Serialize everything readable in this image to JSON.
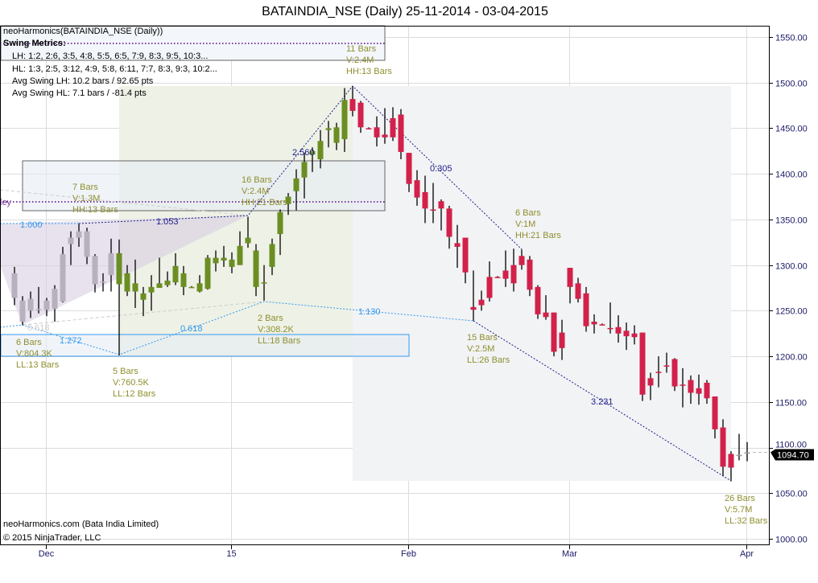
{
  "chart_data": {
    "type": "candlestick",
    "title": "BATAINDIA_NSE (Daily)  25-11-2014 - 03-04-2015",
    "indicator_label": "neoHarmonics(BATAINDIA_NSE (Daily))",
    "swing_metrics": {
      "heading": "Swing Metrics:",
      "lh": "LH: 1:2, 2:6, 3:5, 4:8, 5:5, 6:5, 7:9, 8:3, 9:5, 10:3...",
      "hl": "HL: 1:3, 2:5, 3:12, 4:9, 5:8, 6:11, 7:7, 8:3, 9:3, 10:2...",
      "avg_lh": "Avg Swing LH: 10.2 bars / 92.65 pts",
      "avg_hl": "Avg Swing HL: 7.1 bars / -81.4 pts"
    },
    "pattern_label_partial": "ley",
    "ylim": [
      1000,
      1550
    ],
    "y_ticks": [
      "1000.00",
      "1050.00",
      "1100.00",
      "1150.00",
      "1200.00",
      "1250.00",
      "1300.00",
      "1350.00",
      "1400.00",
      "1450.00",
      "1500.00",
      "1550.00"
    ],
    "y_tick_values": [
      1000,
      1050,
      1100,
      1150,
      1200,
      1250,
      1300,
      1350,
      1400,
      1450,
      1500,
      1550
    ],
    "x_ticks": [
      {
        "label": "Dec",
        "bar": 4
      },
      {
        "label": "15",
        "bar": 27
      },
      {
        "label": "Feb",
        "bar": 49
      },
      {
        "label": "Mar",
        "bar": 69
      },
      {
        "label": "Apr",
        "bar": 91
      }
    ],
    "last_price": "1094.70",
    "last_price_value": 1094.7,
    "colors": {
      "gray": "#b8b0bd",
      "up_pattern": "#6b8e23",
      "down_pattern": "#d2214a",
      "plain": "#9a9a9a",
      "label": "#8f8f2f",
      "ratio_dark": "#1c1c8a",
      "ratio_light": "#3399ee"
    },
    "color_segments": [
      {
        "from": 0,
        "to": 12,
        "color": "#b8b0bd"
      },
      {
        "from": 13,
        "to": 41,
        "color": "#6b8e23"
      },
      {
        "from": 42,
        "to": 89,
        "color": "#d2214a"
      },
      {
        "from": 90,
        "to": 91,
        "color": "#9a9a9a"
      }
    ],
    "ohlc": [
      [
        1291,
        1298,
        1256,
        1264
      ],
      [
        1261,
        1266,
        1234,
        1238
      ],
      [
        1250,
        1271,
        1242,
        1263
      ],
      [
        1252,
        1276,
        1247,
        1252
      ],
      [
        1251,
        1264,
        1244,
        1261
      ],
      [
        1252,
        1278,
        1238,
        1274
      ],
      [
        1260,
        1320,
        1259,
        1312
      ],
      [
        1323,
        1337,
        1300,
        1330
      ],
      [
        1330,
        1345,
        1320,
        1337
      ],
      [
        1337,
        1341,
        1301,
        1309
      ],
      [
        1310,
        1312,
        1270,
        1279
      ],
      [
        1282,
        1291,
        1271,
        1282
      ],
      [
        1289,
        1329,
        1271,
        1313
      ],
      [
        1279,
        1328,
        1201,
        1313
      ],
      [
        1291,
        1300,
        1266,
        1271
      ],
      [
        1280,
        1306,
        1253,
        1271
      ],
      [
        1269,
        1276,
        1244,
        1262
      ],
      [
        1270,
        1289,
        1250,
        1276
      ],
      [
        1275,
        1308,
        1275,
        1280
      ],
      [
        1278,
        1293,
        1276,
        1283
      ],
      [
        1281,
        1313,
        1278,
        1299
      ],
      [
        1291,
        1299,
        1267,
        1276
      ],
      [
        1276,
        1277,
        1275,
        1276
      ],
      [
        1271,
        1289,
        1270,
        1280
      ],
      [
        1274,
        1311,
        1273,
        1308
      ],
      [
        1302,
        1316,
        1293,
        1308
      ],
      [
        1305,
        1321,
        1298,
        1308
      ],
      [
        1306,
        1314,
        1291,
        1298
      ],
      [
        1300,
        1337,
        1300,
        1321
      ],
      [
        1324,
        1353,
        1319,
        1330
      ],
      [
        1316,
        1323,
        1266,
        1276
      ],
      [
        1281,
        1300,
        1261,
        1281
      ],
      [
        1298,
        1329,
        1289,
        1323
      ],
      [
        1334,
        1361,
        1311,
        1358
      ],
      [
        1367,
        1379,
        1355,
        1375
      ],
      [
        1381,
        1405,
        1360,
        1395
      ],
      [
        1396,
        1423,
        1373,
        1413
      ],
      [
        1421,
        1429,
        1402,
        1425
      ],
      [
        1416,
        1448,
        1406,
        1436
      ],
      [
        1448,
        1458,
        1429,
        1450
      ],
      [
        1434,
        1456,
        1426,
        1451
      ],
      [
        1438,
        1494,
        1424,
        1481
      ],
      [
        1482,
        1496,
        1463,
        1469
      ],
      [
        1478,
        1480,
        1445,
        1451
      ],
      [
        1450,
        1451,
        1449,
        1450
      ],
      [
        1451,
        1463,
        1430,
        1440
      ],
      [
        1443,
        1472,
        1433,
        1440
      ],
      [
        1461,
        1473,
        1436,
        1440
      ],
      [
        1465,
        1471,
        1416,
        1424
      ],
      [
        1423,
        1423,
        1380,
        1389
      ],
      [
        1393,
        1404,
        1365,
        1374
      ],
      [
        1380,
        1398,
        1346,
        1362
      ],
      [
        1361,
        1390,
        1346,
        1361
      ],
      [
        1370,
        1372,
        1338,
        1362
      ],
      [
        1362,
        1365,
        1318,
        1331
      ],
      [
        1324,
        1344,
        1297,
        1320
      ],
      [
        1330,
        1330,
        1280,
        1292
      ],
      [
        1254,
        1294,
        1239,
        1251
      ],
      [
        1262,
        1272,
        1250,
        1256
      ],
      [
        1287,
        1304,
        1260,
        1264
      ],
      [
        1287,
        1288,
        1286,
        1287
      ],
      [
        1294,
        1316,
        1276,
        1285
      ],
      [
        1300,
        1318,
        1271,
        1280
      ],
      [
        1310,
        1317,
        1295,
        1300
      ],
      [
        1306,
        1310,
        1266,
        1273
      ],
      [
        1276,
        1278,
        1241,
        1246
      ],
      [
        1248,
        1267,
        1240,
        1243
      ],
      [
        1248,
        1248,
        1200,
        1205
      ],
      [
        1226,
        1240,
        1196,
        1209
      ],
      [
        1297,
        1297,
        1258,
        1276
      ],
      [
        1280,
        1286,
        1259,
        1263
      ],
      [
        1269,
        1276,
        1227,
        1233
      ],
      [
        1238,
        1246,
        1225,
        1235
      ],
      [
        1235,
        1236,
        1234,
        1235
      ],
      [
        1231,
        1259,
        1225,
        1231
      ],
      [
        1232,
        1245,
        1215,
        1225
      ],
      [
        1228,
        1237,
        1207,
        1222
      ],
      [
        1225,
        1234,
        1213,
        1221
      ],
      [
        1226,
        1226,
        1151,
        1158
      ],
      [
        1176,
        1182,
        1152,
        1168
      ],
      [
        1183,
        1200,
        1166,
        1183
      ],
      [
        1190,
        1204,
        1182,
        1189
      ],
      [
        1197,
        1198,
        1162,
        1167
      ],
      [
        1169,
        1187,
        1144,
        1169
      ],
      [
        1174,
        1179,
        1148,
        1160
      ],
      [
        1165,
        1180,
        1147,
        1159
      ],
      [
        1171,
        1174,
        1148,
        1154
      ],
      [
        1156,
        1156,
        1110,
        1120
      ],
      [
        1122,
        1131,
        1069,
        1079
      ],
      [
        1093,
        1096,
        1063,
        1078
      ],
      [
        1092,
        1115,
        1086,
        1092
      ],
      [
        1094.7,
        1106,
        1085,
        1094.7
      ]
    ],
    "ratios": [
      "2.560",
      "0.305",
      "3.231",
      "1.053",
      "1.000",
      "1.272",
      "0.618",
      "1.130",
      "0.618"
    ],
    "swing_labels": [
      [
        "11 Bars",
        "V:2.4M",
        "HH:13 Bars"
      ],
      [
        "7 Bars",
        "V:1.3M",
        "HH:13 Bars"
      ],
      [
        "16 Bars",
        "V:2.4M",
        "HH:21 Bars"
      ],
      [
        "6 Bars",
        "V:1M",
        "HH:21 Bars"
      ],
      [
        "6 Bars",
        "V:804.3K",
        "LL:13 Bars"
      ],
      [
        "5 Bars",
        "V:760.5K",
        "LL:12 Bars"
      ],
      [
        "2 Bars",
        "V:308.2K",
        "LL:18 Bars"
      ],
      [
        "15 Bars",
        "V:2.5M",
        "LL:26 Bars"
      ],
      [
        "26 Bars",
        "V:5.7M",
        "LL:32 Bars"
      ]
    ],
    "footer": {
      "source": "neoHarmonics.com (Bata India Limited)",
      "copyright": "© 2015 NinjaTrader, LLC"
    }
  }
}
